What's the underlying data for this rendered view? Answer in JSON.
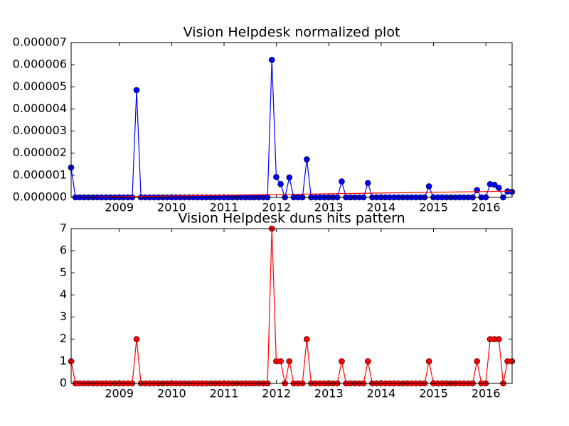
{
  "chart_data": [
    {
      "type": "line",
      "title": "Vision Helpdesk normalized plot",
      "x": [
        2008.08,
        2008.163,
        2008.247,
        2008.33,
        2008.413,
        2008.497,
        2008.58,
        2008.663,
        2008.747,
        2008.83,
        2008.913,
        2008.997,
        2009.08,
        2009.163,
        2009.247,
        2009.33,
        2009.413,
        2009.497,
        2009.58,
        2009.663,
        2009.747,
        2009.83,
        2009.913,
        2009.997,
        2010.08,
        2010.163,
        2010.247,
        2010.33,
        2010.413,
        2010.497,
        2010.58,
        2010.663,
        2010.747,
        2010.83,
        2010.913,
        2010.997,
        2011.08,
        2011.163,
        2011.247,
        2011.33,
        2011.413,
        2011.497,
        2011.58,
        2011.663,
        2011.747,
        2011.83,
        2011.913,
        2011.997,
        2012.08,
        2012.163,
        2012.247,
        2012.33,
        2012.413,
        2012.497,
        2012.58,
        2012.663,
        2012.747,
        2012.83,
        2012.913,
        2012.997,
        2013.08,
        2013.163,
        2013.247,
        2013.33,
        2013.413,
        2013.497,
        2013.58,
        2013.663,
        2013.747,
        2013.83,
        2013.913,
        2013.997,
        2014.08,
        2014.163,
        2014.247,
        2014.33,
        2014.413,
        2014.497,
        2014.58,
        2014.663,
        2014.747,
        2014.83,
        2014.913,
        2014.997,
        2015.08,
        2015.163,
        2015.247,
        2015.33,
        2015.413,
        2015.497,
        2015.58,
        2015.663,
        2015.747,
        2015.83,
        2015.913,
        2015.997,
        2016.08,
        2016.163,
        2016.247,
        2016.33,
        2016.413,
        2016.497
      ],
      "xlim": [
        2008.08,
        2016.5
      ],
      "xticks": [
        2009,
        2010,
        2011,
        2012,
        2013,
        2014,
        2015,
        2016
      ],
      "ylim": [
        0,
        7e-06
      ],
      "yticks": [
        {
          "value": 0,
          "label": "0.000000"
        },
        {
          "value": 1e-06,
          "label": "0.000001"
        },
        {
          "value": 2e-06,
          "label": "0.000002"
        },
        {
          "value": 3e-06,
          "label": "0.000003"
        },
        {
          "value": 4e-06,
          "label": "0.000004"
        },
        {
          "value": 5e-06,
          "label": "0.000005"
        },
        {
          "value": 6e-06,
          "label": "0.000006"
        },
        {
          "value": 7e-06,
          "label": "0.000007"
        }
      ],
      "series": [
        {
          "color": "#0000ff",
          "marker": true,
          "values": [
            1.35e-06,
            0,
            0,
            0,
            0,
            0,
            0,
            0,
            0,
            0,
            0,
            0,
            0,
            0,
            0,
            4.85e-06,
            0,
            0,
            0,
            0,
            0,
            0,
            0,
            0,
            0,
            0,
            0,
            0,
            0,
            0,
            0,
            0,
            0,
            0,
            0,
            0,
            0,
            0,
            0,
            0,
            0,
            0,
            0,
            0,
            0,
            0,
            6.22e-06,
            9.2e-07,
            6e-07,
            0,
            9e-07,
            0,
            0,
            0,
            1.72e-06,
            0,
            0,
            0,
            0,
            0,
            0,
            0,
            7.2e-07,
            0,
            0,
            0,
            0,
            0,
            6.5e-07,
            0,
            0,
            0,
            0,
            0,
            0,
            0,
            0,
            0,
            0,
            0,
            0,
            0,
            5e-07,
            0,
            0,
            0,
            0,
            0,
            0,
            0,
            0,
            0,
            0,
            3.3e-07,
            0,
            0,
            6e-07,
            5.7e-07,
            4.3e-07,
            0,
            2.7e-07,
            2.5e-07
          ]
        },
        {
          "color": "#ff0000",
          "marker": false,
          "x": [
            2008.08,
            2016.5
          ],
          "values": [
            0,
            2.8e-07
          ]
        }
      ]
    },
    {
      "type": "line",
      "title": "Vision Helpdesk duns hits pattern",
      "x": [
        2008.08,
        2008.163,
        2008.247,
        2008.33,
        2008.413,
        2008.497,
        2008.58,
        2008.663,
        2008.747,
        2008.83,
        2008.913,
        2008.997,
        2009.08,
        2009.163,
        2009.247,
        2009.33,
        2009.413,
        2009.497,
        2009.58,
        2009.663,
        2009.747,
        2009.83,
        2009.913,
        2009.997,
        2010.08,
        2010.163,
        2010.247,
        2010.33,
        2010.413,
        2010.497,
        2010.58,
        2010.663,
        2010.747,
        2010.83,
        2010.913,
        2010.997,
        2011.08,
        2011.163,
        2011.247,
        2011.33,
        2011.413,
        2011.497,
        2011.58,
        2011.663,
        2011.747,
        2011.83,
        2011.913,
        2011.997,
        2012.08,
        2012.163,
        2012.247,
        2012.33,
        2012.413,
        2012.497,
        2012.58,
        2012.663,
        2012.747,
        2012.83,
        2012.913,
        2012.997,
        2013.08,
        2013.163,
        2013.247,
        2013.33,
        2013.413,
        2013.497,
        2013.58,
        2013.663,
        2013.747,
        2013.83,
        2013.913,
        2013.997,
        2014.08,
        2014.163,
        2014.247,
        2014.33,
        2014.413,
        2014.497,
        2014.58,
        2014.663,
        2014.747,
        2014.83,
        2014.913,
        2014.997,
        2015.08,
        2015.163,
        2015.247,
        2015.33,
        2015.413,
        2015.497,
        2015.58,
        2015.663,
        2015.747,
        2015.83,
        2015.913,
        2015.997,
        2016.08,
        2016.163,
        2016.247,
        2016.33,
        2016.413,
        2016.497
      ],
      "xlim": [
        2008.08,
        2016.5
      ],
      "xticks": [
        2009,
        2010,
        2011,
        2012,
        2013,
        2014,
        2015,
        2016
      ],
      "ylim": [
        0,
        7
      ],
      "yticks": [
        0,
        1,
        2,
        3,
        4,
        5,
        6,
        7
      ],
      "series": [
        {
          "color": "#ff0000",
          "marker": true,
          "values": [
            1,
            0,
            0,
            0,
            0,
            0,
            0,
            0,
            0,
            0,
            0,
            0,
            0,
            0,
            0,
            2,
            0,
            0,
            0,
            0,
            0,
            0,
            0,
            0,
            0,
            0,
            0,
            0,
            0,
            0,
            0,
            0,
            0,
            0,
            0,
            0,
            0,
            0,
            0,
            0,
            0,
            0,
            0,
            0,
            0,
            0,
            7,
            1,
            1,
            0,
            1,
            0,
            0,
            0,
            2,
            0,
            0,
            0,
            0,
            0,
            0,
            0,
            1,
            0,
            0,
            0,
            0,
            0,
            1,
            0,
            0,
            0,
            0,
            0,
            0,
            0,
            0,
            0,
            0,
            0,
            0,
            0,
            1,
            0,
            0,
            0,
            0,
            0,
            0,
            0,
            0,
            0,
            0,
            1,
            0,
            0,
            2,
            2,
            2,
            0,
            1,
            1
          ]
        }
      ]
    }
  ]
}
